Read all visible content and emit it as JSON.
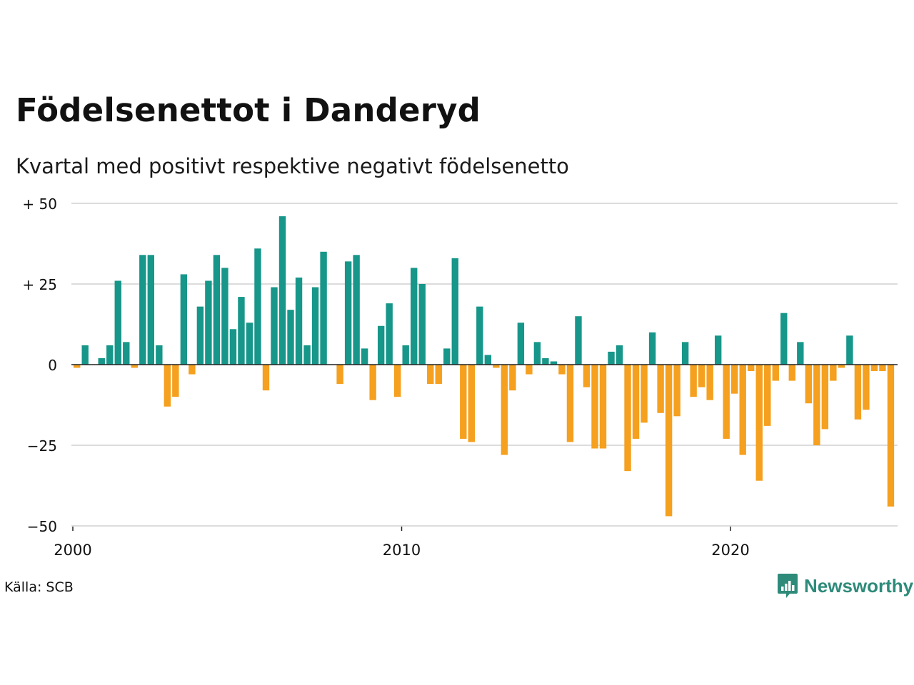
{
  "title": "Födelsenettot i Danderyd",
  "subtitle": "Kvartal med positivt respektive negativt födelsenetto",
  "source": "Källa: SCB",
  "brand": {
    "name": "Newsworthy",
    "icon": "bar-chart-speech-bubble-icon",
    "color": "#2e8b7a"
  },
  "colors": {
    "positive": "#17968a",
    "negative": "#f5a01e",
    "grid": "#dcdcdc",
    "zero_line": "#222222"
  },
  "chart_data": {
    "type": "bar",
    "xlabel": "",
    "ylabel": "",
    "ylim": [
      -50,
      50
    ],
    "yticks": [
      {
        "value": 50,
        "label": "+ 50"
      },
      {
        "value": 25,
        "label": "+ 25"
      },
      {
        "value": 0,
        "label": "0"
      },
      {
        "value": -25,
        "label": "−25"
      },
      {
        "value": -50,
        "label": "−50"
      }
    ],
    "xticks": [
      {
        "value": 2000,
        "label": "2000"
      },
      {
        "value": 2010,
        "label": "2010"
      },
      {
        "value": 2020,
        "label": "2020"
      }
    ],
    "grid": true,
    "x_start_year": 2000,
    "periods_per_year": 4,
    "values": [
      -1,
      6,
      0,
      2,
      6,
      26,
      7,
      -1,
      34,
      34,
      6,
      -13,
      -10,
      28,
      -3,
      18,
      26,
      34,
      30,
      11,
      21,
      13,
      36,
      -8,
      24,
      46,
      17,
      27,
      6,
      24,
      35,
      0,
      -6,
      32,
      34,
      5,
      -11,
      12,
      19,
      -10,
      6,
      30,
      25,
      -6,
      -6,
      5,
      33,
      -23,
      -24,
      18,
      3,
      -1,
      -28,
      -8,
      13,
      -3,
      7,
      2,
      1,
      -3,
      -24,
      15,
      -7,
      -26,
      -26,
      4,
      6,
      -33,
      -23,
      -18,
      10,
      -15,
      -47,
      -16,
      7,
      -10,
      -7,
      -11,
      9,
      -23,
      -9,
      -28,
      -2,
      -36,
      -19,
      -5,
      16,
      -5,
      7,
      -12,
      -25,
      -20,
      -5,
      -1,
      9,
      -17,
      -14,
      -2,
      -2,
      -44
    ]
  }
}
